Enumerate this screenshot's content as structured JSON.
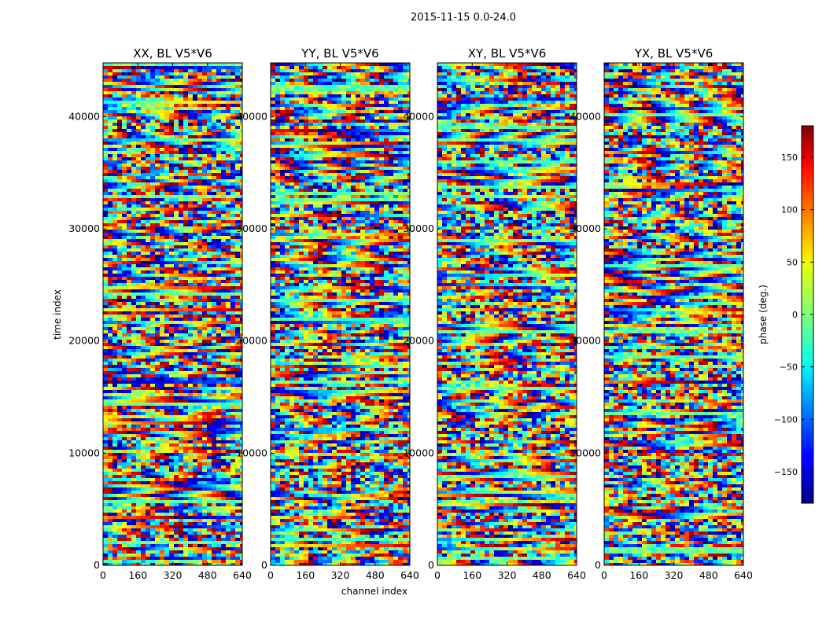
{
  "chart_data": {
    "type": "heatmap",
    "title": "2015-11-15 0.0-24.0",
    "xlabel": "channel index",
    "ylabel": "time index",
    "xlim": [
      0,
      640
    ],
    "ylim": [
      0,
      44800
    ],
    "x_ticks": [
      "0",
      "160",
      "320",
      "480",
      "640"
    ],
    "y_ticks": [
      "0",
      "10000",
      "20000",
      "30000",
      "40000"
    ],
    "y_tick_values": [
      0,
      10000,
      20000,
      30000,
      40000
    ],
    "x_tick_values": [
      0,
      160,
      320,
      480,
      640
    ],
    "colormap": "jet",
    "colorbar": {
      "label": "phase (deg.)",
      "range": [
        -180,
        180
      ],
      "ticks": [
        "150",
        "100",
        "50",
        "0",
        "−50",
        "−100",
        "−150"
      ],
      "tick_values": [
        150,
        100,
        50,
        0,
        -50,
        -100,
        -150
      ]
    },
    "panels": [
      {
        "title": "XX, BL V5*V6"
      },
      {
        "title": "YY, BL V5*V6"
      },
      {
        "title": "XY, BL V5*V6"
      },
      {
        "title": "YX, BL V5*V6"
      }
    ]
  }
}
